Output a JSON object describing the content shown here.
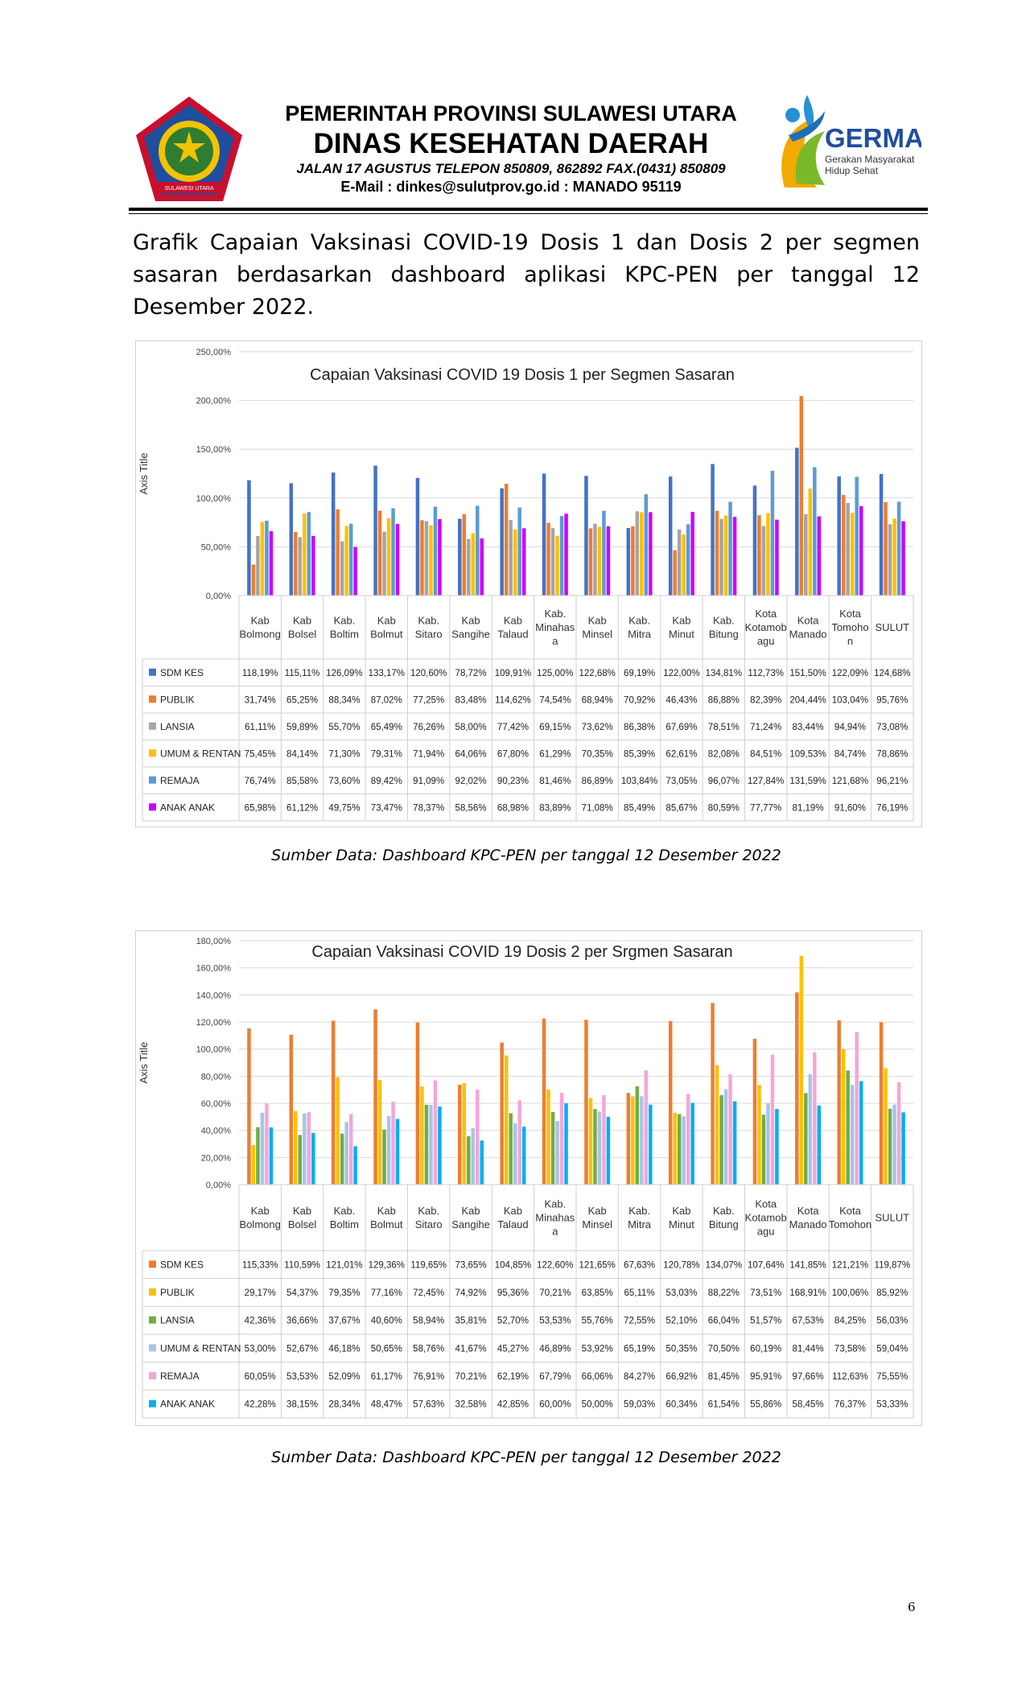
{
  "header": {
    "line1": "PEMERINTAH PROVINSI SULAWESI UTARA",
    "line2": "DINAS KESEHATAN DAERAH",
    "line3": "JALAN 17 AGUSTUS  TELEPON  850809, 862892  FAX.(0431) 850809",
    "line4": "E-Mail : dinkes@sulutprov.go.id : MANADO   95119",
    "logo_right_text": "GERMAS",
    "logo_right_sub1": "Gerakan Masyarakat",
    "logo_right_sub2": "Hidup Sehat",
    "logo_left_ribbon": "SULAWESI UTARA"
  },
  "intro": "Grafik Capaian Vaksinasi COVID-19 Dosis 1 dan Dosis 2 per segmen sasaran berdasarkan dashboard aplikasi KPC-PEN per tanggal 12 Desember 2022.",
  "caption1": "Sumber Data: Dashboard KPC-PEN per tanggal  12 Desember 2022",
  "caption2": "Sumber Data: Dashboard KPC-PEN per tanggal 12 Desember 2022",
  "page_number": "6",
  "chart_data": [
    {
      "type": "bar",
      "title": "Capaian Vaksinasi COVID 19 Dosis 1 per Segmen Sasaran",
      "ylabel": "Axis Title",
      "ylim": [
        0,
        250
      ],
      "yticks": [
        0,
        50,
        100,
        150,
        200,
        250
      ],
      "ytick_labels": [
        "0,00%",
        "50,00%",
        "100,00%",
        "150,00%",
        "200,00%",
        "250,00%"
      ],
      "categories": [
        [
          "Kab",
          "Bolmong"
        ],
        [
          "Kab",
          "Bolsel"
        ],
        [
          "Kab.",
          "Boltim"
        ],
        [
          "Kab",
          "Bolmut"
        ],
        [
          "Kab.",
          "Sitaro"
        ],
        [
          "Kab",
          "Sangihe"
        ],
        [
          "Kab",
          "Talaud"
        ],
        [
          "Kab.",
          "Minahas",
          "a"
        ],
        [
          "Kab",
          "Minsel"
        ],
        [
          "Kab.",
          "Mitra"
        ],
        [
          "Kab",
          "Minut"
        ],
        [
          "Kab.",
          "Bitung"
        ],
        [
          "Kota",
          "Kotamob",
          "agu"
        ],
        [
          "Kota",
          "Manado"
        ],
        [
          "Kota",
          "Tomoho",
          "n"
        ],
        [
          "SULUT"
        ]
      ],
      "series": [
        {
          "name": "SDM KES",
          "color": "#4472C4",
          "values": [
            118.19,
            115.11,
            126.09,
            133.17,
            120.6,
            78.72,
            109.91,
            125.0,
            122.68,
            69.19,
            122.0,
            134.81,
            112.73,
            151.5,
            122.09,
            124.68
          ],
          "labels": [
            "118,19%",
            "115,11%",
            "126,09%",
            "133,17%",
            "120,60%",
            "78,72%",
            "109,91%",
            "125,00%",
            "122,68%",
            "69,19%",
            "122,00%",
            "134,81%",
            "112,73%",
            "151,50%",
            "122,09%",
            "124,68%"
          ]
        },
        {
          "name": "PUBLIK",
          "color": "#ED7D31",
          "values": [
            31.74,
            65.25,
            88.34,
            87.02,
            77.25,
            83.48,
            114.62,
            74.54,
            68.94,
            70.92,
            46.43,
            86.88,
            82.39,
            204.44,
            103.04,
            95.76
          ],
          "labels": [
            "31,74%",
            "65,25%",
            "88,34%",
            "87,02%",
            "77,25%",
            "83,48%",
            "114,62%",
            "74,54%",
            "68,94%",
            "70,92%",
            "46,43%",
            "86,88%",
            "82,39%",
            "204,44%",
            "103,04%",
            "95,76%"
          ]
        },
        {
          "name": "LANSIA",
          "color": "#A5A5A5",
          "values": [
            61.11,
            59.89,
            55.7,
            65.49,
            76.26,
            58.0,
            77.42,
            69.15,
            73.62,
            86.38,
            67.69,
            78.51,
            71.24,
            83.44,
            94.94,
            73.08
          ],
          "labels": [
            "61,11%",
            "59,89%",
            "55,70%",
            "65,49%",
            "76,26%",
            "58,00%",
            "77,42%",
            "69,15%",
            "73,62%",
            "86,38%",
            "67,69%",
            "78,51%",
            "71,24%",
            "83,44%",
            "94,94%",
            "73,08%"
          ]
        },
        {
          "name": "UMUM & RENTAN",
          "color": "#FFC000",
          "values": [
            75.45,
            84.14,
            71.3,
            79.31,
            71.94,
            64.06,
            67.8,
            61.29,
            70.35,
            85.39,
            62.61,
            82.08,
            84.51,
            109.53,
            84.74,
            78.86
          ],
          "labels": [
            "75,45%",
            "84,14%",
            "71,30%",
            "79,31%",
            "71,94%",
            "64,06%",
            "67,80%",
            "61,29%",
            "70,35%",
            "85,39%",
            "62,61%",
            "82,08%",
            "84,51%",
            "109,53%",
            "84,74%",
            "78,86%"
          ]
        },
        {
          "name": "REMAJA",
          "color": "#5B9BD5",
          "values": [
            76.74,
            85.58,
            73.6,
            89.42,
            91.09,
            92.02,
            90.23,
            81.46,
            86.89,
            103.84,
            73.05,
            96.07,
            127.84,
            131.59,
            121.68,
            96.21
          ],
          "labels": [
            "76,74%",
            "85,58%",
            "73,60%",
            "89,42%",
            "91,09%",
            "92,02%",
            "90,23%",
            "81,46%",
            "86,89%",
            "103,84%",
            "73,05%",
            "96,07%",
            "127,84%",
            "131,59%",
            "121,68%",
            "96,21%"
          ]
        },
        {
          "name": "ANAK ANAK",
          "color": "#CC00FF",
          "values": [
            65.98,
            61.12,
            49.75,
            73.47,
            78.37,
            58.56,
            68.98,
            83.89,
            71.08,
            85.49,
            85.67,
            80.59,
            77.77,
            81.19,
            91.6,
            76.19
          ],
          "labels": [
            "65,98%",
            "61,12%",
            "49,75%",
            "73,47%",
            "78,37%",
            "58,56%",
            "68,98%",
            "83,89%",
            "71,08%",
            "85,49%",
            "85,67%",
            "80,59%",
            "77,77%",
            "81,19%",
            "91,60%",
            "76,19%"
          ]
        }
      ]
    },
    {
      "type": "bar",
      "title": "Capaian Vaksinasi COVID 19 Dosis 2 per Srgmen Sasaran",
      "ylabel": "Axis Title",
      "ylim": [
        0,
        180
      ],
      "yticks": [
        0,
        20,
        40,
        60,
        80,
        100,
        120,
        140,
        160,
        180
      ],
      "ytick_labels": [
        "0,00%",
        "20,00%",
        "40,00%",
        "60,00%",
        "80,00%",
        "100,00%",
        "120,00%",
        "140,00%",
        "160,00%",
        "180,00%"
      ],
      "categories": [
        [
          "Kab",
          "Bolmong"
        ],
        [
          "Kab",
          "Bolsel"
        ],
        [
          "Kab.",
          "Boltim"
        ],
        [
          "Kab",
          "Bolmut"
        ],
        [
          "Kab.",
          "Sitaro"
        ],
        [
          "Kab",
          "Sangihe"
        ],
        [
          "Kab",
          "Talaud"
        ],
        [
          "Kab.",
          "Minahas",
          "a"
        ],
        [
          "Kab",
          "Minsel"
        ],
        [
          "Kab.",
          "Mitra"
        ],
        [
          "Kab",
          "Minut"
        ],
        [
          "Kab.",
          "Bitung"
        ],
        [
          "Kota",
          "Kotamob",
          "agu"
        ],
        [
          "Kota",
          "Manado"
        ],
        [
          "Kota",
          "Tomohon"
        ],
        [
          "SULUT"
        ]
      ],
      "series": [
        {
          "name": "SDM KES",
          "color": "#ED7D31",
          "values": [
            115.33,
            110.59,
            121.01,
            129.36,
            119.65,
            73.65,
            104.85,
            122.6,
            121.65,
            67.63,
            120.78,
            134.07,
            107.64,
            141.85,
            121.21,
            119.87
          ],
          "labels": [
            "115,33%",
            "110,59%",
            "121,01%",
            "129,36%",
            "119,65%",
            "73,65%",
            "104,85%",
            "122,60%",
            "121,65%",
            "67,63%",
            "120,78%",
            "134,07%",
            "107,64%",
            "141,85%",
            "121,21%",
            "119,87%"
          ]
        },
        {
          "name": "PUBLIK",
          "color": "#FFC000",
          "values": [
            29.17,
            54.37,
            79.35,
            77.16,
            72.45,
            74.92,
            95.36,
            70.21,
            63.85,
            65.11,
            53.03,
            88.22,
            73.51,
            168.91,
            100.06,
            85.92
          ],
          "labels": [
            "29,17%",
            "54,37%",
            "79,35%",
            "77,16%",
            "72,45%",
            "74,92%",
            "95,36%",
            "70,21%",
            "63,85%",
            "65,11%",
            "53,03%",
            "88,22%",
            "73,51%",
            "168,91%",
            "100,06%",
            "85,92%"
          ]
        },
        {
          "name": "LANSIA",
          "color": "#70AD47",
          "values": [
            42.36,
            36.66,
            37.67,
            40.6,
            58.94,
            35.81,
            52.7,
            53.53,
            55.76,
            72.55,
            52.1,
            66.04,
            51.57,
            67.53,
            84.25,
            56.03
          ],
          "labels": [
            "42,36%",
            "36,66%",
            "37,67%",
            "40,60%",
            "58,94%",
            "35,81%",
            "52,70%",
            "53,53%",
            "55,76%",
            "72,55%",
            "52,10%",
            "66,04%",
            "51,57%",
            "67,53%",
            "84,25%",
            "56,03%"
          ]
        },
        {
          "name": "UMUM & RENTAN",
          "color": "#A9C4E8",
          "values": [
            53.0,
            52.67,
            46.18,
            50.65,
            58.76,
            41.67,
            45.27,
            46.89,
            53.92,
            65.19,
            50.35,
            70.5,
            60.19,
            81.44,
            73.58,
            59.04
          ],
          "labels": [
            "53,00%",
            "52,67%",
            "46,18%",
            "50,65%",
            "58,76%",
            "41,67%",
            "45,27%",
            "46,89%",
            "53,92%",
            "65,19%",
            "50,35%",
            "70,50%",
            "60,19%",
            "81,44%",
            "73,58%",
            "59,04%"
          ]
        },
        {
          "name": "REMAJA",
          "color": "#F4A6D7",
          "values": [
            60.05,
            53.53,
            52.09,
            61.17,
            76.91,
            70.21,
            62.19,
            67.79,
            66.06,
            84.27,
            66.92,
            81.45,
            95.91,
            97.66,
            112.63,
            75.55
          ],
          "labels": [
            "60,05%",
            "53,53%",
            "52,09%",
            "61,17%",
            "76,91%",
            "70,21%",
            "62,19%",
            "67,79%",
            "66,06%",
            "84,27%",
            "66,92%",
            "81,45%",
            "95,91%",
            "97,66%",
            "112,63%",
            "75,55%"
          ]
        },
        {
          "name": "ANAK ANAK",
          "color": "#00B0F0",
          "values": [
            42.28,
            38.15,
            28.34,
            48.47,
            57.63,
            32.58,
            42.85,
            60.0,
            50.0,
            59.03,
            60.34,
            61.54,
            55.86,
            58.45,
            76.37,
            53.33
          ],
          "labels": [
            "42,28%",
            "38,15%",
            "28,34%",
            "48,47%",
            "57,63%",
            "32,58%",
            "42,85%",
            "60,00%",
            "50,00%",
            "59,03%",
            "60,34%",
            "61,54%",
            "55,86%",
            "58,45%",
            "76,37%",
            "53,33%"
          ]
        }
      ]
    }
  ]
}
